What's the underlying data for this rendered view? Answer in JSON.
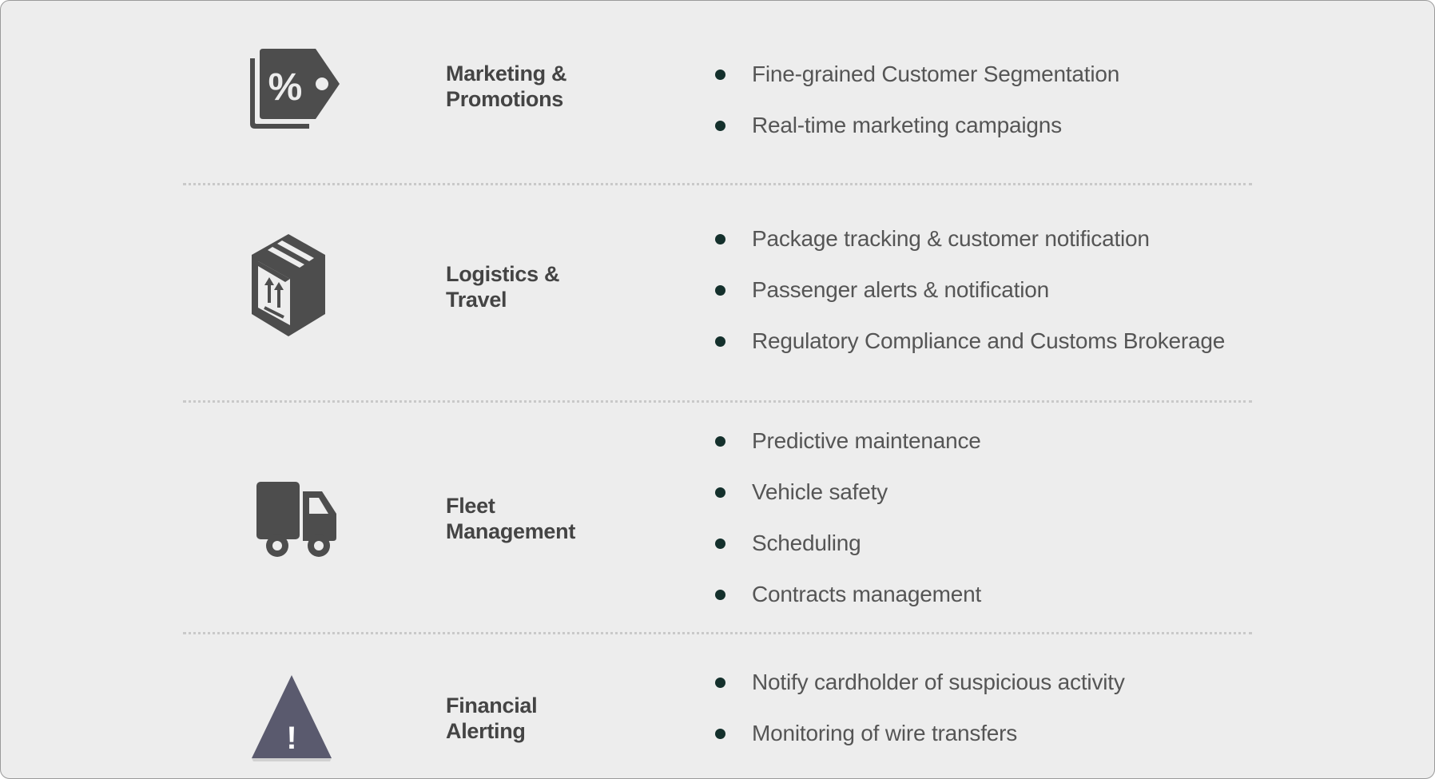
{
  "colors": {
    "background": "#ededed",
    "icon_gray": "#4d4d4d",
    "warning_triangle": "#5a5a6e",
    "bullet": "#14302c",
    "text": "#555555",
    "heading": "#444444"
  },
  "rows": [
    {
      "icon": "discount-tag-icon",
      "icon_glyph": "%",
      "title_line1": "Marketing &",
      "title_line2": "Promotions",
      "items": [
        "Fine-grained Customer Segmentation",
        "Real-time marketing campaigns"
      ]
    },
    {
      "icon": "package-box-icon",
      "title_line1": "Logistics &",
      "title_line2": "Travel",
      "items": [
        "Package tracking & customer notification",
        "Passenger alerts & notification",
        "Regulatory Compliance and Customs Brokerage"
      ]
    },
    {
      "icon": "delivery-truck-icon",
      "title_line1": "Fleet",
      "title_line2": "Management",
      "items": [
        "Predictive maintenance",
        "Vehicle safety",
        "Scheduling",
        "Contracts management"
      ]
    },
    {
      "icon": "warning-triangle-icon",
      "icon_glyph": "!",
      "title_line1": "Financial",
      "title_line2": "Alerting",
      "items": [
        "Notify cardholder of suspicious activity",
        "Monitoring of wire transfers"
      ]
    }
  ]
}
